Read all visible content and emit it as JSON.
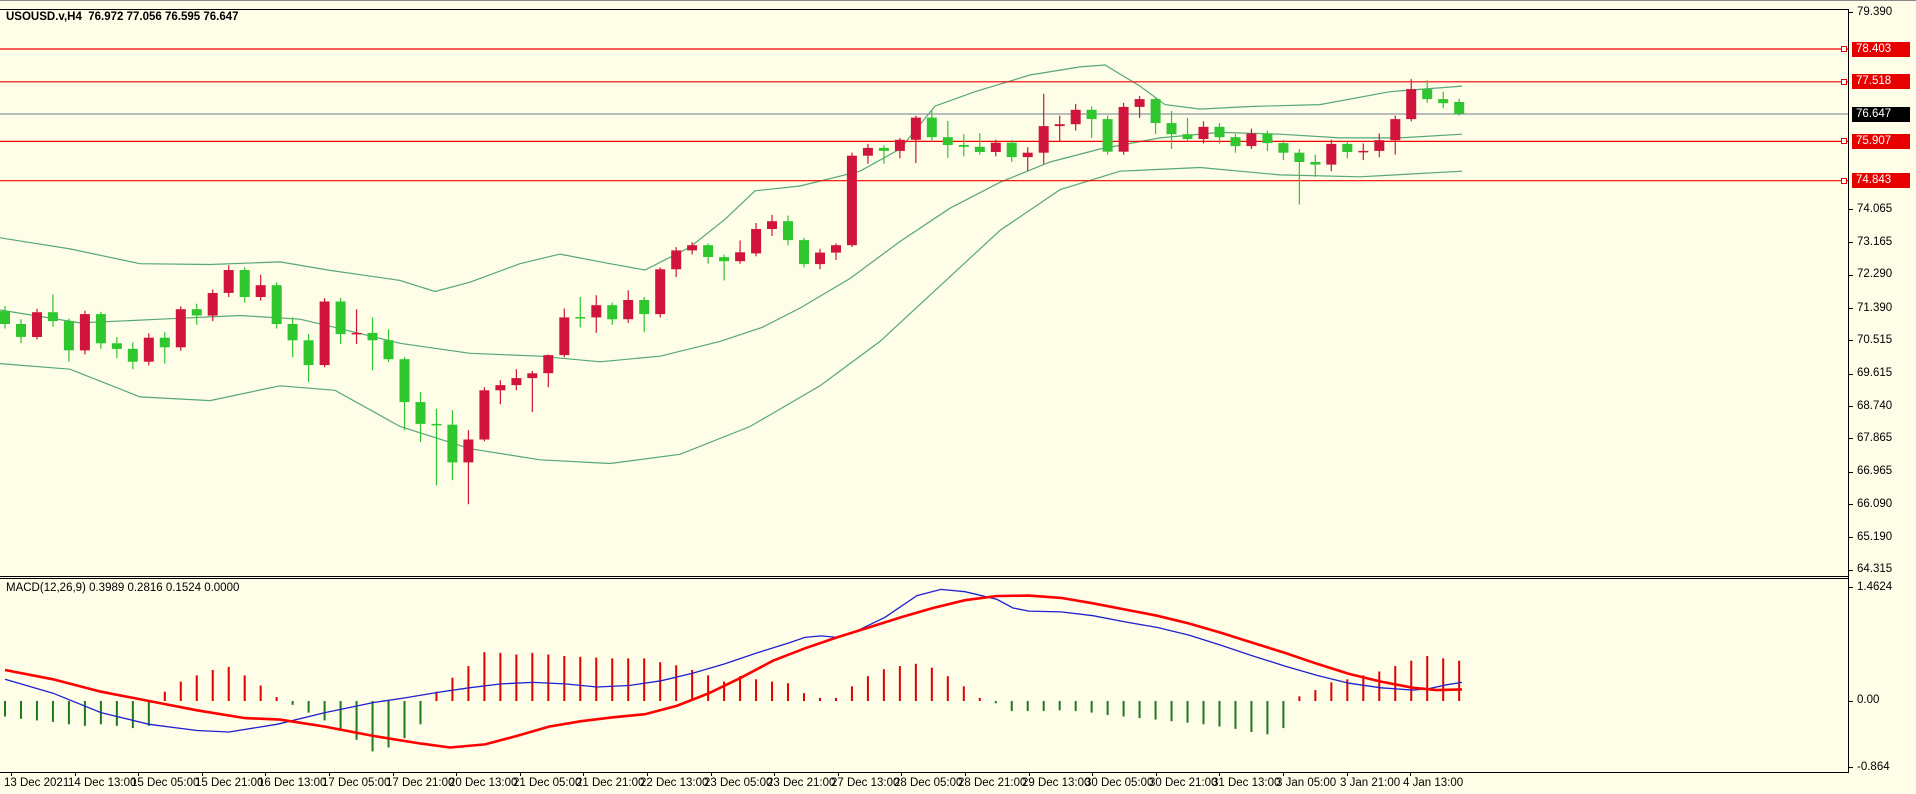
{
  "header": {
    "symbol_period": "USOUSD.v,H4",
    "ohlc_text": "76.972 77.056 76.595 76.647"
  },
  "macd_panel": {
    "indicator_label": "MACD(12,26,9)",
    "values_text": "0.3989 0.2816 0.1524 0.0000",
    "axis_labels": [
      {
        "value": 1.4624,
        "label": "1.4624"
      },
      {
        "value": 0.0,
        "label": "0.00"
      },
      {
        "value": -0.864,
        "label": "-0.864"
      }
    ]
  },
  "price_axis": {
    "tick_labels": [
      "79.390",
      "74.065",
      "73.165",
      "72.290",
      "71.390",
      "70.515",
      "69.615",
      "68.740",
      "67.865",
      "66.965",
      "66.090",
      "65.190",
      "64.315"
    ],
    "tick_values": [
      79.39,
      74.065,
      73.165,
      72.29,
      71.39,
      70.515,
      69.615,
      68.74,
      67.865,
      66.965,
      66.09,
      65.19,
      64.315
    ],
    "level_tags": [
      "78.403",
      "77.518",
      "75.907",
      "74.843"
    ],
    "current_tag": "76.647"
  },
  "time_axis": {
    "labels": [
      "13 Dec 2021",
      "14 Dec 13:00",
      "15 Dec 05:00",
      "15 Dec 21:00",
      "16 Dec 13:00",
      "17 Dec 05:00",
      "17 Dec 21:00",
      "20 Dec 13:00",
      "21 Dec 05:00",
      "21 Dec 21:00",
      "22 Dec 13:00",
      "23 Dec 05:00",
      "23 Dec 21:00",
      "27 Dec 13:00",
      "28 Dec 05:00",
      "28 Dec 21:00",
      "29 Dec 13:00",
      "30 Dec 05:00",
      "30 Dec 21:00",
      "31 Dec 13:00",
      "3 Jan 05:00",
      "3 Jan 21:00",
      "4 Jan 13:00"
    ]
  },
  "colors": {
    "background": "#fdfde8",
    "bull_candle": "#d0143c",
    "bear_candle": "#2fc62f",
    "bollinger": "#56a878",
    "level_line": "#f40000",
    "level_tag_bg": "#e60000",
    "current_line": "#708090",
    "current_tag_bg": "#000000",
    "macd_line": "#2020d0",
    "signal_line": "#ff0000",
    "hist_up": "#e00000",
    "hist_down": "#1c7a1c"
  },
  "chart_data": {
    "type": "candlestick",
    "title": "USOUSD.v,H4",
    "ylabel": "price",
    "y_range_visible": [
      64.315,
      79.39
    ],
    "levels": [
      78.403,
      77.518,
      75.907,
      74.843
    ],
    "current_price": 76.647,
    "candles_ohlc": [
      [
        71.32,
        71.45,
        70.85,
        70.97
      ],
      [
        70.97,
        71.1,
        70.45,
        70.62
      ],
      [
        70.62,
        71.38,
        70.55,
        71.29
      ],
      [
        71.29,
        71.77,
        70.9,
        71.05
      ],
      [
        71.05,
        71.12,
        69.95,
        70.26
      ],
      [
        70.26,
        71.33,
        70.15,
        71.24
      ],
      [
        71.24,
        71.3,
        70.3,
        70.45
      ],
      [
        70.45,
        70.62,
        70.05,
        70.3
      ],
      [
        70.3,
        70.48,
        69.75,
        69.95
      ],
      [
        69.95,
        70.72,
        69.85,
        70.6
      ],
      [
        70.6,
        70.75,
        69.9,
        70.34
      ],
      [
        70.34,
        71.45,
        70.25,
        71.37
      ],
      [
        71.37,
        71.52,
        70.95,
        71.2
      ],
      [
        71.2,
        71.9,
        71.05,
        71.81
      ],
      [
        71.81,
        72.56,
        71.7,
        72.43
      ],
      [
        72.43,
        72.5,
        71.55,
        71.7
      ],
      [
        71.7,
        72.3,
        71.6,
        72.02
      ],
      [
        72.02,
        72.1,
        70.85,
        70.97
      ],
      [
        70.97,
        71.15,
        70.07,
        70.53
      ],
      [
        70.53,
        70.7,
        69.4,
        69.86
      ],
      [
        69.86,
        71.67,
        69.8,
        71.58
      ],
      [
        71.58,
        71.67,
        70.43,
        70.7
      ],
      [
        70.7,
        71.37,
        70.43,
        70.73
      ],
      [
        70.73,
        71.15,
        69.72,
        70.53
      ],
      [
        70.53,
        70.83,
        69.94,
        70.02
      ],
      [
        70.02,
        70.08,
        68.1,
        68.86
      ],
      [
        68.86,
        69.13,
        67.78,
        68.27
      ],
      [
        68.27,
        68.68,
        66.61,
        68.25
      ],
      [
        68.25,
        68.64,
        66.75,
        67.23
      ],
      [
        67.23,
        68.1,
        66.1,
        67.85
      ],
      [
        67.85,
        69.26,
        67.8,
        69.18
      ],
      [
        69.18,
        69.45,
        68.8,
        69.32
      ],
      [
        69.32,
        69.75,
        69.18,
        69.51
      ],
      [
        69.51,
        69.7,
        68.59,
        69.64
      ],
      [
        69.64,
        70.15,
        69.26,
        70.13
      ],
      [
        70.13,
        71.39,
        70.07,
        71.15
      ],
      [
        71.16,
        71.7,
        70.88,
        71.15
      ],
      [
        71.15,
        71.75,
        70.73,
        71.48
      ],
      [
        71.48,
        71.55,
        70.95,
        71.1
      ],
      [
        71.1,
        71.88,
        71.0,
        71.62
      ],
      [
        71.62,
        71.7,
        70.75,
        71.24
      ],
      [
        71.24,
        72.5,
        71.15,
        72.45
      ],
      [
        72.45,
        73.05,
        72.24,
        72.96
      ],
      [
        72.96,
        73.18,
        72.85,
        73.1
      ],
      [
        73.1,
        73.15,
        72.6,
        72.78
      ],
      [
        72.78,
        72.85,
        72.15,
        72.67
      ],
      [
        72.67,
        73.23,
        72.6,
        72.91
      ],
      [
        72.88,
        73.7,
        72.8,
        73.54
      ],
      [
        73.54,
        73.92,
        73.35,
        73.75
      ],
      [
        73.75,
        73.9,
        73.1,
        73.24
      ],
      [
        73.24,
        73.3,
        72.5,
        72.59
      ],
      [
        72.59,
        73.0,
        72.45,
        72.9
      ],
      [
        72.9,
        73.15,
        72.7,
        73.1
      ],
      [
        73.1,
        75.6,
        73.05,
        75.52
      ],
      [
        75.52,
        75.84,
        75.3,
        75.73
      ],
      [
        75.73,
        75.8,
        75.3,
        75.65
      ],
      [
        75.65,
        76.0,
        75.45,
        75.95
      ],
      [
        75.95,
        76.6,
        75.32,
        76.55
      ],
      [
        76.55,
        76.73,
        75.9,
        76.02
      ],
      [
        76.02,
        76.46,
        75.46,
        75.81
      ],
      [
        75.81,
        76.1,
        75.5,
        75.76
      ],
      [
        75.76,
        76.13,
        75.55,
        75.62
      ],
      [
        75.62,
        75.95,
        75.5,
        75.87
      ],
      [
        75.87,
        75.95,
        75.35,
        75.48
      ],
      [
        75.48,
        75.75,
        75.11,
        75.6
      ],
      [
        75.6,
        77.19,
        75.3,
        76.32
      ],
      [
        76.32,
        76.6,
        75.9,
        76.37
      ],
      [
        76.37,
        76.92,
        76.2,
        76.76
      ],
      [
        76.76,
        76.85,
        76.0,
        76.51
      ],
      [
        76.51,
        76.6,
        75.55,
        75.63
      ],
      [
        75.63,
        76.95,
        75.55,
        76.84
      ],
      [
        76.84,
        77.13,
        76.54,
        77.05
      ],
      [
        77.05,
        77.08,
        76.1,
        76.4
      ],
      [
        76.4,
        76.73,
        75.7,
        76.1
      ],
      [
        76.1,
        76.54,
        75.9,
        75.97
      ],
      [
        75.97,
        76.45,
        75.85,
        76.3
      ],
      [
        76.3,
        76.4,
        75.85,
        76.02
      ],
      [
        76.02,
        76.1,
        75.6,
        75.78
      ],
      [
        75.78,
        76.25,
        75.7,
        76.12
      ],
      [
        76.12,
        76.2,
        75.65,
        75.86
      ],
      [
        75.86,
        75.95,
        75.4,
        75.6
      ],
      [
        75.6,
        75.7,
        74.2,
        75.35
      ],
      [
        75.35,
        75.55,
        74.95,
        75.28
      ],
      [
        75.28,
        75.95,
        75.1,
        75.84
      ],
      [
        75.84,
        75.9,
        75.45,
        75.62
      ],
      [
        75.62,
        75.85,
        75.4,
        75.65
      ],
      [
        75.65,
        76.12,
        75.48,
        75.94
      ],
      [
        75.94,
        76.6,
        75.55,
        76.51
      ],
      [
        76.51,
        77.59,
        76.45,
        77.32
      ],
      [
        77.32,
        77.56,
        76.95,
        77.05
      ],
      [
        77.05,
        77.25,
        76.8,
        76.94
      ],
      [
        76.97,
        77.06,
        76.6,
        76.65
      ]
    ],
    "bollinger": {
      "upper": [
        [
          0,
          73.3
        ],
        [
          70,
          73.0
        ],
        [
          140,
          72.6
        ],
        [
          210,
          72.58
        ],
        [
          280,
          72.65
        ],
        [
          330,
          72.42
        ],
        [
          400,
          72.15
        ],
        [
          435,
          71.85
        ],
        [
          470,
          72.1
        ],
        [
          520,
          72.6
        ],
        [
          560,
          72.86
        ],
        [
          610,
          72.6
        ],
        [
          645,
          72.43
        ],
        [
          690,
          73.05
        ],
        [
          725,
          73.8
        ],
        [
          755,
          74.57
        ],
        [
          800,
          74.7
        ],
        [
          860,
          75.1
        ],
        [
          900,
          75.7
        ],
        [
          935,
          76.86
        ],
        [
          975,
          77.25
        ],
        [
          1030,
          77.7
        ],
        [
          1080,
          77.92
        ],
        [
          1105,
          77.97
        ],
        [
          1140,
          77.4
        ],
        [
          1165,
          76.9
        ],
        [
          1200,
          76.78
        ],
        [
          1250,
          76.85
        ],
        [
          1320,
          76.9
        ],
        [
          1390,
          77.25
        ],
        [
          1462,
          77.4
        ]
      ],
      "middle": [
        [
          0,
          71.35
        ],
        [
          80,
          71.0
        ],
        [
          160,
          71.1
        ],
        [
          240,
          71.2
        ],
        [
          300,
          71.1
        ],
        [
          335,
          70.88
        ],
        [
          400,
          70.45
        ],
        [
          470,
          70.18
        ],
        [
          540,
          70.1
        ],
        [
          600,
          69.95
        ],
        [
          660,
          70.1
        ],
        [
          720,
          70.5
        ],
        [
          762,
          70.88
        ],
        [
          800,
          71.4
        ],
        [
          850,
          72.2
        ],
        [
          900,
          73.2
        ],
        [
          950,
          74.1
        ],
        [
          1000,
          74.8
        ],
        [
          1050,
          75.35
        ],
        [
          1100,
          75.7
        ],
        [
          1160,
          76.0
        ],
        [
          1220,
          76.15
        ],
        [
          1280,
          76.1
        ],
        [
          1340,
          76.0
        ],
        [
          1400,
          76.0
        ],
        [
          1462,
          76.1
        ]
      ],
      "lower": [
        [
          0,
          69.9
        ],
        [
          70,
          69.75
        ],
        [
          140,
          69.0
        ],
        [
          210,
          68.9
        ],
        [
          280,
          69.3
        ],
        [
          335,
          69.18
        ],
        [
          400,
          68.2
        ],
        [
          470,
          67.6
        ],
        [
          540,
          67.3
        ],
        [
          610,
          67.2
        ],
        [
          680,
          67.45
        ],
        [
          750,
          68.2
        ],
        [
          820,
          69.3
        ],
        [
          880,
          70.5
        ],
        [
          940,
          72.0
        ],
        [
          1000,
          73.5
        ],
        [
          1060,
          74.6
        ],
        [
          1120,
          75.1
        ],
        [
          1200,
          75.2
        ],
        [
          1280,
          75.0
        ],
        [
          1360,
          74.95
        ],
        [
          1462,
          75.1
        ]
      ]
    },
    "macd": {
      "histogram": [
        -0.2,
        -0.23,
        -0.25,
        -0.27,
        -0.3,
        -0.32,
        -0.3,
        -0.32,
        -0.35,
        -0.32,
        0.12,
        0.25,
        0.33,
        0.4,
        0.44,
        0.33,
        0.2,
        0.05,
        -0.05,
        -0.15,
        -0.25,
        -0.38,
        -0.5,
        -0.65,
        -0.6,
        -0.48,
        -0.3,
        0.12,
        0.3,
        0.45,
        0.63,
        0.62,
        0.6,
        0.62,
        0.6,
        0.58,
        0.57,
        0.56,
        0.55,
        0.55,
        0.55,
        0.5,
        0.46,
        0.4,
        0.33,
        0.25,
        0.32,
        0.28,
        0.25,
        0.23,
        0.1,
        0.04,
        0.04,
        0.19,
        0.32,
        0.41,
        0.45,
        0.48,
        0.43,
        0.32,
        0.19,
        0.04,
        -0.03,
        -0.13,
        -0.13,
        -0.13,
        -0.12,
        -0.13,
        -0.15,
        -0.18,
        -0.2,
        -0.22,
        -0.24,
        -0.26,
        -0.28,
        -0.3,
        -0.33,
        -0.36,
        -0.4,
        -0.43,
        -0.35,
        0.06,
        0.14,
        0.24,
        0.28,
        0.33,
        0.38,
        0.45,
        0.52,
        0.58,
        0.55,
        0.52
      ],
      "macd_line": [
        [
          5,
          0.28
        ],
        [
          53,
          0.1
        ],
        [
          101,
          -0.15
        ],
        [
          149,
          -0.3
        ],
        [
          197,
          -0.38
        ],
        [
          229,
          -0.4
        ],
        [
          277,
          -0.3
        ],
        [
          325,
          -0.15
        ],
        [
          373,
          -0.02
        ],
        [
          405,
          0.04
        ],
        [
          437,
          0.11
        ],
        [
          469,
          0.17
        ],
        [
          501,
          0.22
        ],
        [
          533,
          0.24
        ],
        [
          565,
          0.22
        ],
        [
          597,
          0.18
        ],
        [
          629,
          0.2
        ],
        [
          661,
          0.26
        ],
        [
          693,
          0.36
        ],
        [
          725,
          0.48
        ],
        [
          757,
          0.62
        ],
        [
          789,
          0.75
        ],
        [
          805,
          0.82
        ],
        [
          821,
          0.84
        ],
        [
          837,
          0.82
        ],
        [
          853,
          0.88
        ],
        [
          885,
          1.08
        ],
        [
          917,
          1.36
        ],
        [
          941,
          1.44
        ],
        [
          965,
          1.41
        ],
        [
          997,
          1.31
        ],
        [
          1013,
          1.2
        ],
        [
          1029,
          1.16
        ],
        [
          1061,
          1.15
        ],
        [
          1093,
          1.1
        ],
        [
          1125,
          1.02
        ],
        [
          1157,
          0.95
        ],
        [
          1189,
          0.85
        ],
        [
          1221,
          0.72
        ],
        [
          1253,
          0.58
        ],
        [
          1285,
          0.45
        ],
        [
          1317,
          0.33
        ],
        [
          1349,
          0.23
        ],
        [
          1381,
          0.17
        ],
        [
          1413,
          0.14
        ],
        [
          1429,
          0.16
        ],
        [
          1447,
          0.21
        ],
        [
          1462,
          0.24
        ]
      ],
      "signal_line": [
        [
          5,
          0.4
        ],
        [
          53,
          0.28
        ],
        [
          101,
          0.12
        ],
        [
          149,
          0.0
        ],
        [
          197,
          -0.12
        ],
        [
          245,
          -0.22
        ],
        [
          280,
          -0.24
        ],
        [
          325,
          -0.33
        ],
        [
          373,
          -0.45
        ],
        [
          421,
          -0.55
        ],
        [
          450,
          -0.6
        ],
        [
          485,
          -0.56
        ],
        [
          517,
          -0.45
        ],
        [
          549,
          -0.33
        ],
        [
          581,
          -0.26
        ],
        [
          613,
          -0.21
        ],
        [
          645,
          -0.17
        ],
        [
          677,
          -0.06
        ],
        [
          709,
          0.1
        ],
        [
          741,
          0.3
        ],
        [
          773,
          0.52
        ],
        [
          805,
          0.68
        ],
        [
          837,
          0.82
        ],
        [
          869,
          0.95
        ],
        [
          901,
          1.08
        ],
        [
          933,
          1.2
        ],
        [
          965,
          1.3
        ],
        [
          997,
          1.355
        ],
        [
          1029,
          1.36
        ],
        [
          1061,
          1.33
        ],
        [
          1093,
          1.26
        ],
        [
          1125,
          1.18
        ],
        [
          1157,
          1.1
        ],
        [
          1189,
          1.0
        ],
        [
          1221,
          0.88
        ],
        [
          1253,
          0.75
        ],
        [
          1285,
          0.62
        ],
        [
          1317,
          0.48
        ],
        [
          1349,
          0.35
        ],
        [
          1381,
          0.25
        ],
        [
          1413,
          0.17
        ],
        [
          1437,
          0.14
        ],
        [
          1462,
          0.15
        ]
      ]
    }
  }
}
